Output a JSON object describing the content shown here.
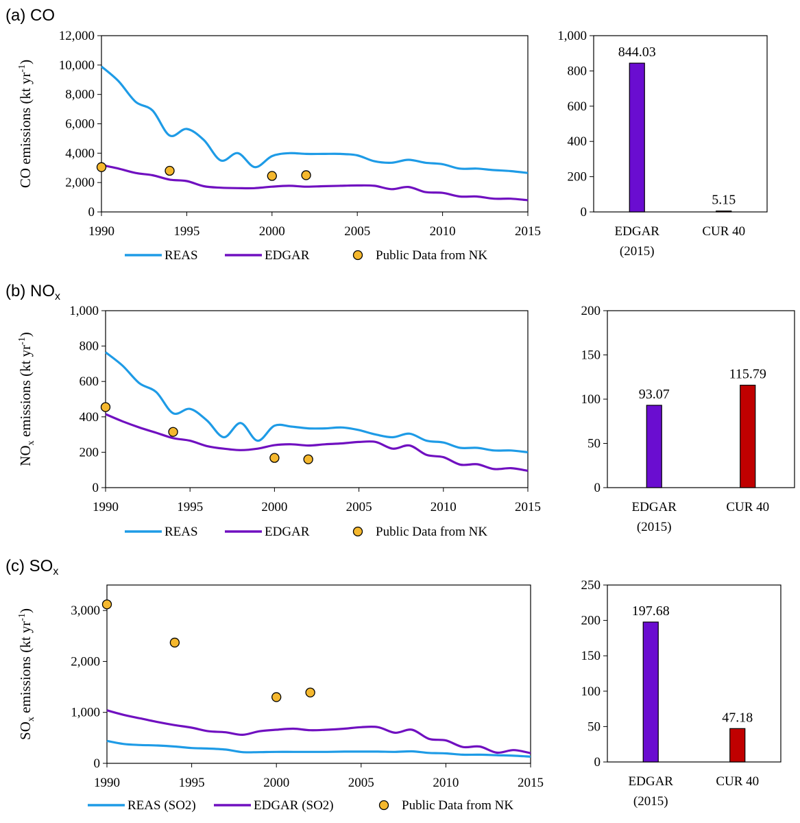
{
  "chart_data": [
    {
      "id": "a",
      "panel_label": "(a) CO",
      "type": "line",
      "ylabel": "CO emissions (kt yr",
      "ylabel_sup": "-1",
      "ylabel_tail": ")",
      "ylim": [
        0,
        12000
      ],
      "yticks": [
        0,
        2000,
        4000,
        6000,
        8000,
        10000,
        12000
      ],
      "ytick_labels": [
        "0",
        "2,000",
        "4,000",
        "6,000",
        "8,000",
        "10,000",
        "12,000"
      ],
      "xlim": [
        1990,
        2015
      ],
      "xticks": [
        1990,
        1995,
        2000,
        2005,
        2010,
        2015
      ],
      "xtick_labels": [
        "1990",
        "1995",
        "2000",
        "2005",
        "2010",
        "2015"
      ],
      "series": [
        {
          "name": "REAS",
          "kind": "line",
          "color": "#1e9be6",
          "x": [
            1990,
            1991,
            1992,
            1993,
            1994,
            1995,
            1996,
            1997,
            1998,
            1999,
            2000,
            2001,
            2002,
            2003,
            2004,
            2005,
            2006,
            2007,
            2008,
            2009,
            2010,
            2011,
            2012,
            2013,
            2014,
            2015
          ],
          "y": [
            9900,
            8900,
            7500,
            6900,
            5200,
            5650,
            4900,
            3500,
            4000,
            3050,
            3800,
            4000,
            3950,
            3950,
            3950,
            3850,
            3450,
            3350,
            3550,
            3350,
            3250,
            2950,
            2950,
            2850,
            2780,
            2650
          ]
        },
        {
          "name": "EDGAR",
          "kind": "line",
          "color": "#7010c0",
          "x": [
            1990,
            1991,
            1992,
            1993,
            1994,
            1995,
            1996,
            1997,
            1998,
            1999,
            2000,
            2001,
            2002,
            2003,
            2004,
            2005,
            2006,
            2007,
            2008,
            2009,
            2010,
            2011,
            2012,
            2013,
            2014,
            2015
          ],
          "y": [
            3200,
            2950,
            2650,
            2500,
            2200,
            2100,
            1750,
            1650,
            1620,
            1620,
            1720,
            1780,
            1720,
            1750,
            1780,
            1800,
            1780,
            1550,
            1700,
            1350,
            1300,
            1050,
            1050,
            900,
            900,
            800
          ]
        },
        {
          "name": "Public Data from NK",
          "kind": "scatter",
          "color": "#f5b82e",
          "x": [
            1990,
            1994,
            2000,
            2002
          ],
          "y": [
            3050,
            2800,
            2450,
            2500
          ]
        }
      ],
      "bar": {
        "ylim": [
          0,
          1000
        ],
        "yticks": [
          0,
          200,
          400,
          600,
          800,
          1000
        ],
        "ytick_labels": [
          "0",
          "200",
          "400",
          "600",
          "800",
          "1,000"
        ],
        "categories": [
          "EDGAR\n(2015)",
          "CUR 40"
        ],
        "values": [
          844.03,
          5.15
        ],
        "value_labels": [
          "844.03",
          "5.15"
        ],
        "colors": [
          "#6a0dd0",
          "#c00000"
        ]
      }
    },
    {
      "id": "b",
      "panel_label": "(b) NO",
      "panel_label_sub": "x",
      "type": "line",
      "ylabel": "NO",
      "ylabel_sub": "x",
      "ylabel_mid": " emissions (kt yr",
      "ylabel_sup": "-1",
      "ylabel_tail": ")",
      "ylim": [
        0,
        1000
      ],
      "yticks": [
        0,
        200,
        400,
        600,
        800,
        1000
      ],
      "ytick_labels": [
        "0",
        "200",
        "400",
        "600",
        "800",
        "1,000"
      ],
      "xlim": [
        1990,
        2015
      ],
      "xticks": [
        1990,
        1995,
        2000,
        2005,
        2010,
        2015
      ],
      "xtick_labels": [
        "1990",
        "1995",
        "2000",
        "2005",
        "2010",
        "2015"
      ],
      "series": [
        {
          "name": "REAS",
          "kind": "line",
          "color": "#1e9be6",
          "x": [
            1990,
            1991,
            1992,
            1993,
            1994,
            1995,
            1996,
            1997,
            1998,
            1999,
            2000,
            2001,
            2002,
            2003,
            2004,
            2005,
            2006,
            2007,
            2008,
            2009,
            2010,
            2011,
            2012,
            2013,
            2014,
            2015
          ],
          "y": [
            765,
            690,
            590,
            540,
            420,
            445,
            380,
            285,
            365,
            265,
            350,
            345,
            335,
            335,
            340,
            325,
            300,
            285,
            305,
            265,
            255,
            225,
            225,
            210,
            210,
            200
          ]
        },
        {
          "name": "EDGAR",
          "kind": "line",
          "color": "#7010c0",
          "x": [
            1990,
            1991,
            1992,
            1993,
            1994,
            1995,
            1996,
            1997,
            1998,
            1999,
            2000,
            2001,
            2002,
            2003,
            2004,
            2005,
            2006,
            2007,
            2008,
            2009,
            2010,
            2011,
            2012,
            2013,
            2014,
            2015
          ],
          "y": [
            415,
            375,
            340,
            310,
            280,
            265,
            235,
            220,
            212,
            220,
            240,
            245,
            238,
            245,
            250,
            258,
            258,
            220,
            238,
            185,
            172,
            130,
            132,
            105,
            110,
            95
          ]
        },
        {
          "name": "Public Data from NK",
          "kind": "scatter",
          "color": "#f5b82e",
          "x": [
            1990,
            1994,
            2000,
            2002
          ],
          "y": [
            455,
            315,
            168,
            160
          ]
        }
      ],
      "bar": {
        "ylim": [
          0,
          200
        ],
        "yticks": [
          0,
          50,
          100,
          150,
          200
        ],
        "ytick_labels": [
          "0",
          "50",
          "100",
          "150",
          "200"
        ],
        "categories": [
          "EDGAR\n(2015)",
          "CUR 40"
        ],
        "values": [
          93.07,
          115.79
        ],
        "value_labels": [
          "93.07",
          "115.79"
        ],
        "colors": [
          "#6a0dd0",
          "#c00000"
        ]
      }
    },
    {
      "id": "c",
      "panel_label": "(c) SO",
      "panel_label_sub": "x",
      "type": "line",
      "ylabel": "SO",
      "ylabel_sub": "x",
      "ylabel_mid": " emissions (kt yr",
      "ylabel_sup": "-1",
      "ylabel_tail": ")",
      "ylim": [
        0,
        3500
      ],
      "yticks": [
        0,
        1000,
        2000,
        3000
      ],
      "ytick_labels": [
        "0",
        "1,000",
        "2,000",
        "3,000"
      ],
      "xlim": [
        1990,
        2015
      ],
      "xticks": [
        1990,
        1995,
        2000,
        2005,
        2010,
        2015
      ],
      "xtick_labels": [
        "1990",
        "1995",
        "2000",
        "2005",
        "2010",
        "2015"
      ],
      "series": [
        {
          "name": "REAS (SO2)",
          "kind": "line",
          "color": "#1e9be6",
          "x": [
            1990,
            1991,
            1992,
            1993,
            1994,
            1995,
            1996,
            1997,
            1998,
            1999,
            2000,
            2001,
            2002,
            2003,
            2004,
            2005,
            2006,
            2007,
            2008,
            2009,
            2010,
            2011,
            2012,
            2013,
            2014,
            2015
          ],
          "y": [
            440,
            380,
            360,
            350,
            330,
            300,
            290,
            270,
            220,
            220,
            225,
            225,
            225,
            225,
            230,
            230,
            230,
            225,
            235,
            205,
            195,
            170,
            170,
            160,
            150,
            130
          ]
        },
        {
          "name": "EDGAR (SO2)",
          "kind": "line",
          "color": "#7010c0",
          "x": [
            1990,
            1991,
            1992,
            1993,
            1994,
            1995,
            1996,
            1997,
            1998,
            1999,
            2000,
            2001,
            2002,
            2003,
            2004,
            2005,
            2006,
            2007,
            2008,
            2009,
            2010,
            2011,
            2012,
            2013,
            2014,
            2015
          ],
          "y": [
            1040,
            950,
            880,
            810,
            750,
            700,
            630,
            610,
            560,
            630,
            660,
            680,
            650,
            660,
            680,
            710,
            710,
            600,
            660,
            480,
            450,
            320,
            330,
            210,
            260,
            200
          ]
        },
        {
          "name": "Public Data from NK",
          "kind": "scatter",
          "color": "#f5b82e",
          "x": [
            1990,
            1994,
            2000,
            2002
          ],
          "y": [
            3120,
            2370,
            1300,
            1390
          ]
        }
      ],
      "bar": {
        "ylim": [
          0,
          250
        ],
        "yticks": [
          0,
          50,
          100,
          150,
          200,
          250
        ],
        "ytick_labels": [
          "0",
          "50",
          "100",
          "150",
          "200",
          "250"
        ],
        "categories": [
          "EDGAR\n(2015)",
          "CUR 40"
        ],
        "values": [
          197.68,
          47.18
        ],
        "value_labels": [
          "197.68",
          "47.18"
        ],
        "colors": [
          "#6a0dd0",
          "#c00000"
        ]
      }
    }
  ]
}
